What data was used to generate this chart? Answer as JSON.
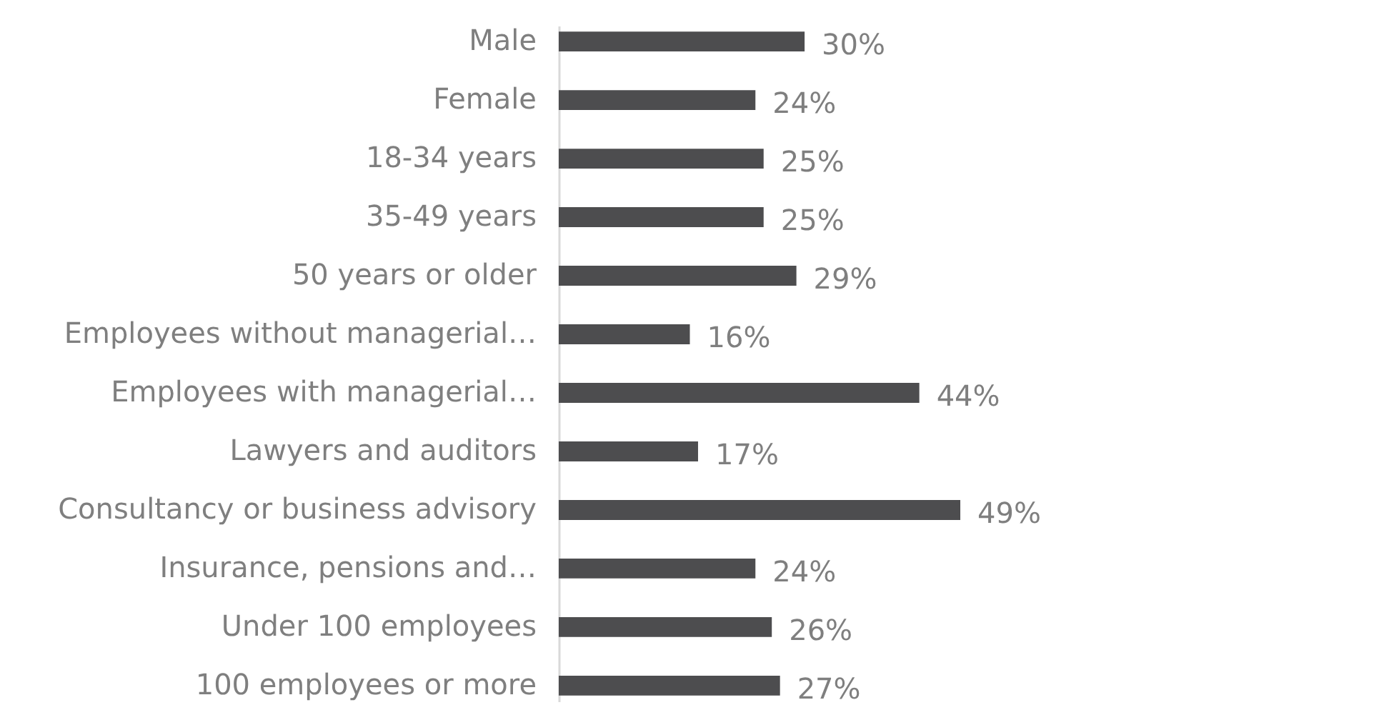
{
  "chart_data": {
    "type": "bar",
    "orientation": "horizontal",
    "categories": [
      "Male",
      "Female",
      "18-34 years",
      "35-49 years",
      "50 years or older",
      "Employees without managerial…",
      "Employees with managerial…",
      "Lawyers and auditors",
      "Consultancy or business advisory",
      "Insurance, pensions and…",
      "Under 100 employees",
      "100 employees or more"
    ],
    "series": [
      {
        "color": "#4d4d4f",
        "values": [
          30,
          24,
          25,
          25,
          29,
          16,
          44,
          17,
          49,
          24,
          26,
          27
        ],
        "value_labels": [
          "30%",
          "24%",
          "25%",
          "25%",
          "29%",
          "16%",
          "44%",
          "17%",
          "49%",
          "24%",
          "26%",
          "27%"
        ]
      }
    ]
  }
}
